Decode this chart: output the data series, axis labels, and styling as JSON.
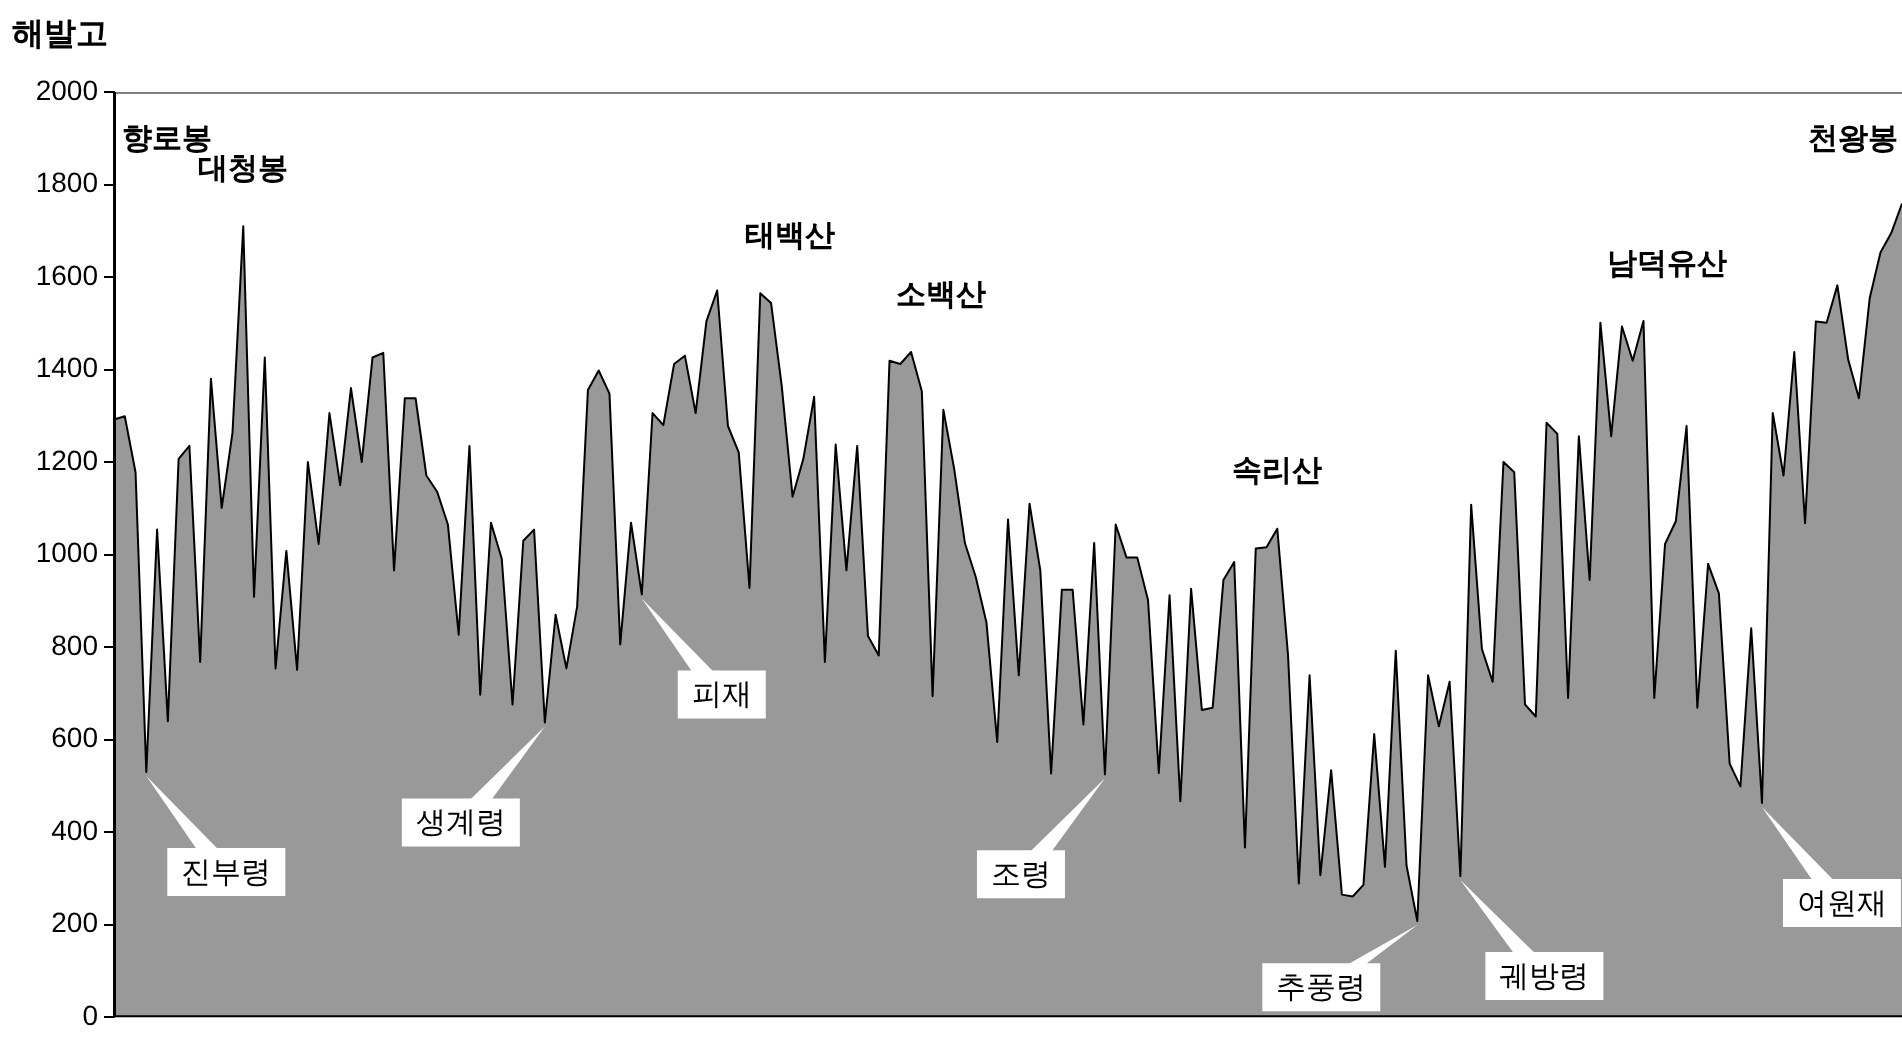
{
  "chart_data": {
    "type": "area",
    "ylabel": "해발고",
    "color": "#999999",
    "categories": [
      null,
      null,
      null,
      null,
      null,
      null,
      null,
      null,
      null,
      null,
      null,
      null,
      null,
      null,
      null,
      null,
      null,
      null,
      null,
      null,
      null,
      null,
      null,
      null,
      null,
      null,
      null,
      null,
      null,
      null,
      null,
      null,
      null,
      null,
      null,
      null,
      null,
      null,
      null,
      null,
      null,
      null,
      null,
      null,
      null,
      null,
      null,
      null,
      null,
      null,
      null,
      null,
      null,
      null,
      null,
      null,
      null,
      null,
      null,
      null,
      null,
      null,
      null,
      null,
      null,
      null,
      null,
      null,
      null,
      null,
      null,
      null,
      null,
      null,
      null,
      null,
      null,
      null,
      null,
      null,
      null,
      null,
      null,
      null,
      null,
      null,
      null,
      null,
      null,
      null,
      null,
      null,
      null,
      null,
      null,
      null,
      null,
      null,
      null,
      null,
      null,
      null,
      null,
      null,
      null,
      null,
      null,
      null,
      null,
      null,
      null,
      null,
      null,
      null,
      null,
      null,
      null,
      null,
      null,
      null,
      null,
      null,
      null,
      null,
      null,
      null,
      null,
      null,
      null,
      null,
      null,
      null,
      null,
      null,
      null,
      null,
      null,
      null,
      null,
      null,
      null,
      null,
      null,
      null,
      null,
      null,
      null,
      null,
      null,
      null,
      null,
      null,
      null,
      null,
      null,
      null,
      null,
      null,
      null,
      null,
      null,
      null,
      null,
      null,
      null,
      null,
      null
    ],
    "values": [
      1292,
      1299,
      1178,
      530,
      1054,
      640,
      1207,
      1235,
      768,
      1380,
      1101,
      1263,
      1710,
      909,
      1426,
      754,
      1008,
      751,
      1200,
      1023,
      1306,
      1150,
      1360,
      1200,
      1426,
      1436,
      966,
      1338,
      1338,
      1171,
      1136,
      1065,
      827,
      1235,
      697,
      1069,
      991,
      676,
      1030,
      1054,
      637,
      870,
      754,
      888,
      1356,
      1398,
      1348,
      806,
      1069,
      914,
      1306,
      1280,
      1412,
      1430,
      1306,
      1504,
      1571,
      1278,
      1221,
      928,
      1565,
      1544,
      1363,
      1125,
      1207,
      1341,
      768,
      1238,
      966,
      1235,
      824,
      782,
      1419,
      1412,
      1438,
      1353,
      694,
      1313,
      1186,
      1025,
      952,
      853,
      595,
      1076,
      739,
      1110,
      966,
      527,
      924,
      924,
      633,
      1025,
      525,
      1065,
      994,
      994,
      902,
      528,
      912,
      467,
      926,
      664,
      669,
      945,
      984,
      367,
      1013,
      1016,
      1056,
      782,
      289,
      739,
      307,
      534,
      265,
      261,
      286,
      612,
      325,
      792,
      328,
      208,
      739,
      629,
      725,
      305,
      1108,
      796,
      725,
      1200,
      1178,
      676,
      650,
      1285,
      1261,
      690,
      1256,
      945,
      1501,
      1256,
      1493,
      1419,
      1505,
      690,
      1023,
      1072,
      1278,
      669,
      980,
      916,
      548,
      499,
      841,
      463,
      1306,
      1171,
      1438,
      1068,
      1504,
      1501,
      1582,
      1422,
      1338,
      1554,
      1653,
      1695,
      1759
    ],
    "ylim": [
      0,
      2000
    ],
    "yticks": [
      0,
      200,
      400,
      600,
      800,
      1000,
      1200,
      1400,
      1600,
      1800,
      2000
    ],
    "grid": false,
    "legend": false,
    "tick_labels": "y",
    "marker": "none",
    "line_style": "solid",
    "annotations": [
      "향로봉",
      "대청봉",
      "진부령",
      "생계령",
      "피재",
      "태백산",
      "소백산",
      "조령",
      "속리산",
      "추풍령",
      "궤방령",
      "남덕유산",
      "여원재",
      "천왕봉"
    ]
  }
}
